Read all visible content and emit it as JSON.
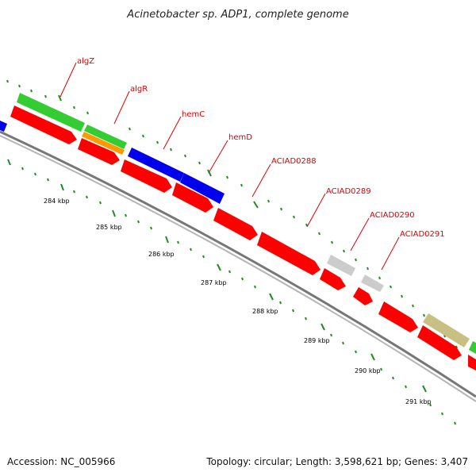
{
  "title": "Acinetobacter sp. ADP1, complete genome",
  "footer": {
    "accession": "Accession: NC_005966",
    "summary": "Topology: circular; Length: 3,598,621 bp; Genes: 3,407"
  },
  "colors": {
    "red": "#ff0000",
    "green": "#33cc33",
    "blue": "#0000ee",
    "orange": "#ff9900",
    "gray": "#cccccc",
    "olive": "#c8c083",
    "label": "#dd0000",
    "tick": "#228b22"
  },
  "gene_labels": [
    {
      "name": "algZ"
    },
    {
      "name": "algR"
    },
    {
      "name": "hemC"
    },
    {
      "name": "hemD"
    },
    {
      "name": "ACIAD0288"
    },
    {
      "name": "ACIAD0289"
    },
    {
      "name": "ACIAD0290"
    },
    {
      "name": "ACIAD0291"
    }
  ],
  "ticks": [
    {
      "label": "284 kbp"
    },
    {
      "label": "285 kbp"
    },
    {
      "label": "286 kbp"
    },
    {
      "label": "287 kbp"
    },
    {
      "label": "288 kbp"
    },
    {
      "label": "289 kbp"
    },
    {
      "label": "290 kbp"
    },
    {
      "label": "291 kbp"
    }
  ]
}
